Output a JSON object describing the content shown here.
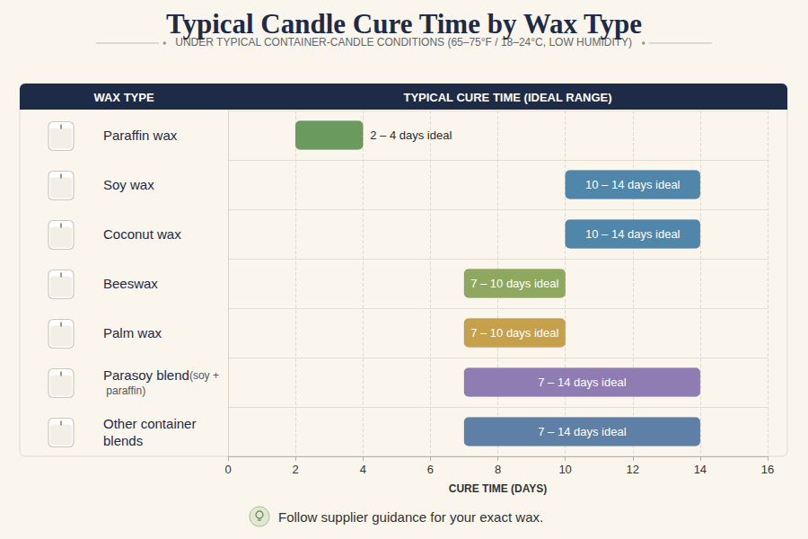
{
  "chart_data": {
    "type": "bar",
    "orientation": "horizontal",
    "title": "Typical Candle Cure Time by Wax Type",
    "subtitle": "UNDER TYPICAL CONTAINER-CANDLE CONDITIONS (65–75°F / 18–24°C, LOW HUMIDITY)",
    "column_headers": [
      "WAX TYPE",
      "TYPICAL CURE TIME (IDEAL RANGE)"
    ],
    "categories": [
      "Paraffin wax",
      "Soy wax",
      "Coconut wax",
      "Beeswax",
      "Palm wax",
      "Parasoy blend\n(soy + paraffin)",
      "Other container blends"
    ],
    "values": [
      [
        2,
        4
      ],
      [
        10,
        14
      ],
      [
        10,
        14
      ],
      [
        7,
        10
      ],
      [
        7,
        10
      ],
      [
        7,
        14
      ],
      [
        7,
        14
      ]
    ],
    "value_labels": [
      "2 – 4 days ideal",
      "10 – 14 days ideal",
      "10 – 14 days ideal",
      "7 – 10 days ideal",
      "7 – 10 days ideal",
      "7 – 14 days ideal",
      "7 – 14 days ideal"
    ],
    "colors": [
      "#6b9a5e",
      "#4f86aa",
      "#4f86aa",
      "#8fa860",
      "#c6a04a",
      "#8e7cb3",
      "#5f80a6"
    ],
    "data_labels": true,
    "xlabel": "CURE TIME (DAYS)",
    "xlim": [
      0,
      16
    ],
    "xticks": [
      0,
      2,
      4,
      6,
      8,
      10,
      12,
      14,
      16
    ],
    "grid": true,
    "note": "Follow supplier guidance for your exact wax."
  }
}
